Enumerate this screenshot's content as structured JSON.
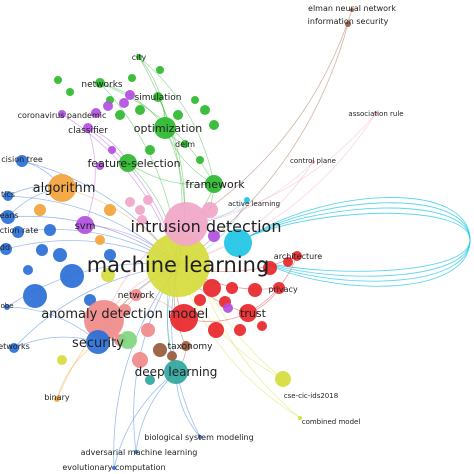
{
  "network": {
    "palette": {
      "red": "#e8262a",
      "green": "#2eb82e",
      "blue": "#2a6fd6",
      "yellow": "#d6dc3c",
      "purple": "#b24fe0",
      "cyan": "#1ec4e6",
      "orange": "#f3a33a",
      "pink": "#f2a6c8",
      "brown": "#9a5a3a",
      "salmon": "#f08a8a",
      "lightgreen": "#7fd67f",
      "teal": "#2fa7a0"
    },
    "nodes": [
      {
        "id": "machine-learning",
        "label": "machine learning",
        "color": "yellow"
      },
      {
        "id": "intrusion-detection",
        "label": "intrusion detection",
        "color": "pink"
      },
      {
        "id": "anomaly-detection",
        "label": "anomaly detection",
        "color": "salmon"
      },
      {
        "id": "model",
        "label": "model",
        "color": "red"
      },
      {
        "id": "security",
        "label": "security",
        "color": "blue"
      },
      {
        "id": "deep-learning",
        "label": "deep learning",
        "color": "teal"
      },
      {
        "id": "algorithm",
        "label": "algorithm",
        "color": "orange"
      },
      {
        "id": "optimization",
        "label": "optimization",
        "color": "green"
      },
      {
        "id": "feature-selection",
        "label": "feature-selection",
        "color": "green"
      },
      {
        "id": "framework",
        "label": "framework",
        "color": "green"
      },
      {
        "id": "network",
        "label": "network",
        "color": "salmon"
      },
      {
        "id": "trust",
        "label": "trust",
        "color": "red"
      },
      {
        "id": "privacy",
        "label": "privacy",
        "color": "red"
      },
      {
        "id": "architecture",
        "label": "architecture",
        "color": "red"
      },
      {
        "id": "taxonomy",
        "label": "taxonomy",
        "color": "brown"
      },
      {
        "id": "svm",
        "label": "svm",
        "color": "purple"
      },
      {
        "id": "classifier",
        "label": "classifier",
        "color": "purple"
      },
      {
        "id": "simulation",
        "label": "simulation",
        "color": "green"
      },
      {
        "id": "networks",
        "label": "networks",
        "color": "green"
      },
      {
        "id": "city",
        "label": "city",
        "color": "green"
      },
      {
        "id": "delm",
        "label": "delm",
        "color": "green"
      },
      {
        "id": "coronavirus-pandemic",
        "label": "coronavirus pandemic",
        "color": "purple"
      },
      {
        "id": "active-learning",
        "label": "active learning",
        "color": "cyan"
      },
      {
        "id": "control-plane",
        "label": "control plane",
        "color": "pink"
      },
      {
        "id": "association-rule",
        "label": "association rule",
        "color": "pink"
      },
      {
        "id": "elman-neural-network",
        "label": "elman neural network",
        "color": "brown"
      },
      {
        "id": "information-security",
        "label": "information security",
        "color": "brown"
      },
      {
        "id": "cse-cic-ids2018",
        "label": "cse-cic-ids2018",
        "color": "yellow"
      },
      {
        "id": "combined-model",
        "label": "combined model",
        "color": "yellow"
      },
      {
        "id": "biological-system-modeling",
        "label": "biological system modeling",
        "color": "blue"
      },
      {
        "id": "adversarial-machine-learning",
        "label": "adversarial machine learning",
        "color": "blue"
      },
      {
        "id": "evolutionary-computation",
        "label": "evolutionary computation",
        "color": "blue"
      },
      {
        "id": "binary",
        "label": "binary",
        "color": "orange"
      },
      {
        "id": "cision-tree",
        "label": "cision tree",
        "color": "blue"
      },
      {
        "id": "tics",
        "label": "tics",
        "color": "blue"
      },
      {
        "id": "eans",
        "label": "eans",
        "color": "blue"
      },
      {
        "id": "ction-rate",
        "label": "ction rate",
        "color": "blue"
      },
      {
        "id": "dd",
        "label": "dd",
        "color": "blue"
      },
      {
        "id": "obe",
        "label": "obe",
        "color": "blue"
      },
      {
        "id": "etworks",
        "label": "etworks",
        "color": "blue"
      }
    ]
  }
}
